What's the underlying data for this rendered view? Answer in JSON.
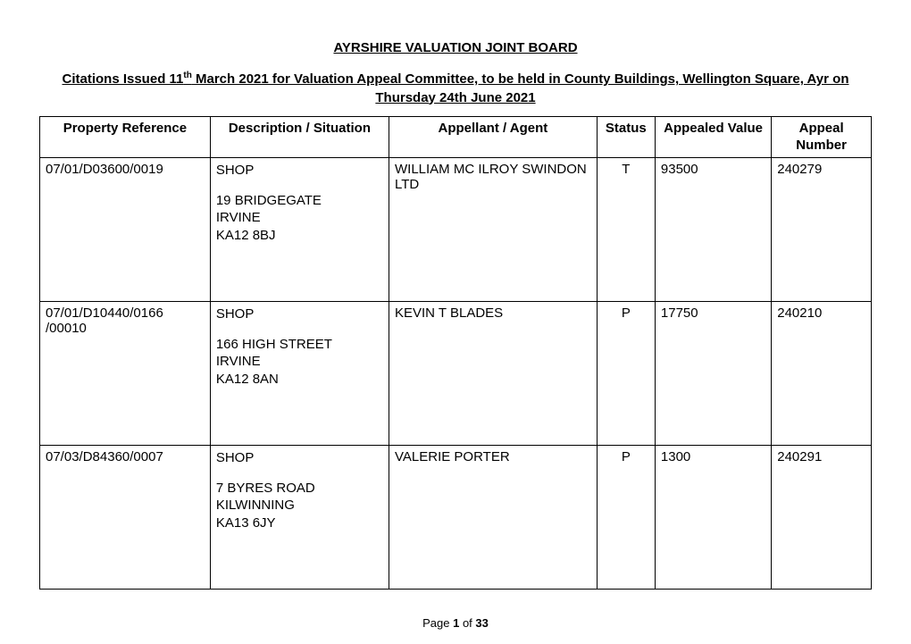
{
  "header": {
    "title": "AYRSHIRE VALUATION JOINT BOARD",
    "subtitle_pre": "Citations Issued 11",
    "subtitle_sup": "th",
    "subtitle_post": " March 2021 for Valuation Appeal Committee, to be held in County Buildings, Wellington Square, Ayr on",
    "subtitle_line2": "Thursday 24th June 2021"
  },
  "columns": {
    "ref": "Property Reference",
    "desc": "Description / Situation",
    "agent": "Appellant / Agent",
    "status": "Status",
    "value": "Appealed Value",
    "number_l1": "Appeal",
    "number_l2": "Number"
  },
  "rows": [
    {
      "ref": "07/01/D03600/0019",
      "desc_type": "SHOP",
      "addr1": "19 BRIDGEGATE",
      "addr2": "IRVINE",
      "addr3": "KA12 8BJ",
      "agent": "WILLIAM MC ILROY SWINDON LTD",
      "status": "T",
      "value": "93500",
      "number": "240279"
    },
    {
      "ref": "07/01/D10440/0166 /00010",
      "desc_type": "SHOP",
      "addr1": "166 HIGH STREET",
      "addr2": "IRVINE",
      "addr3": "KA12 8AN",
      "agent": "KEVIN T BLADES",
      "status": "P",
      "value": "17750",
      "number": "240210"
    },
    {
      "ref": "07/03/D84360/0007",
      "desc_type": "SHOP",
      "addr1": "7 BYRES ROAD",
      "addr2": "KILWINNING",
      "addr3": "KA13 6JY",
      "agent": "VALERIE PORTER",
      "status": "P",
      "value": "1300",
      "number": "240291"
    }
  ],
  "footer": {
    "page_label": "Page ",
    "page_current": "1",
    "page_sep": " of ",
    "page_total": "33"
  }
}
